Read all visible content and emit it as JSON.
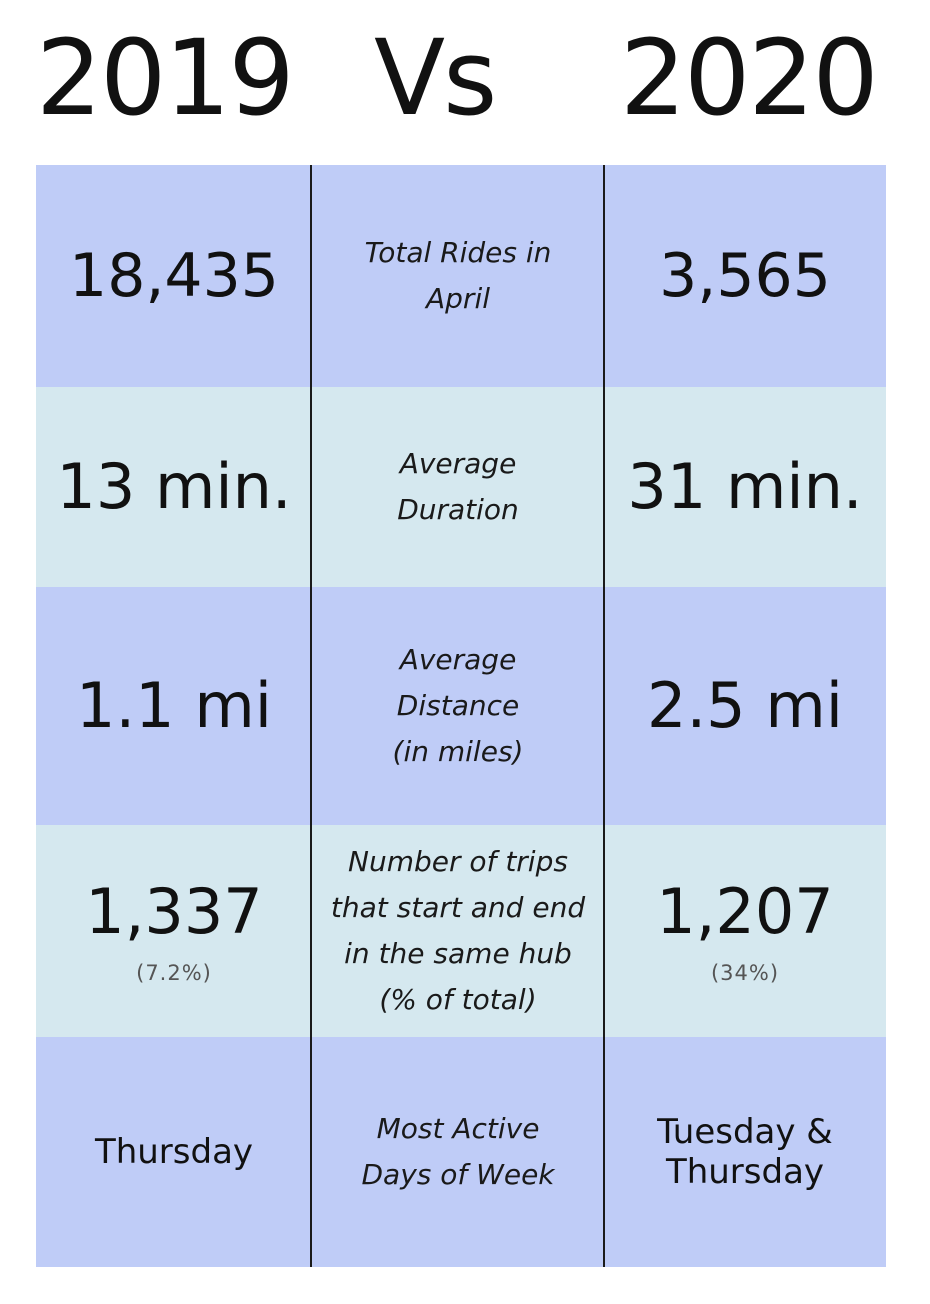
{
  "title": {
    "left": "2019",
    "middle": "Vs",
    "right": "2020"
  },
  "colors": {
    "row_dark": "#bfccf7",
    "row_light": "#d5e8ef",
    "divider": "#1a1a1a",
    "text": "#111111"
  },
  "rows": [
    {
      "left": "18,435",
      "label": "Total Rides in April",
      "right": "3,565"
    },
    {
      "left": "13 min.",
      "label": "Average Duration",
      "right": "31 min."
    },
    {
      "left": "1.1 mi",
      "label": "Average Distance (in miles)",
      "right": "2.5 mi"
    },
    {
      "left": "1,337",
      "left_sub": "(7.2%)",
      "label": "Number of trips that start and end in the same hub (% of total)",
      "right": "1,207",
      "right_sub": "(34%)"
    },
    {
      "left": "Thursday",
      "label": "Most Active Days of Week",
      "right": "Tuesday & Thursday"
    }
  ]
}
